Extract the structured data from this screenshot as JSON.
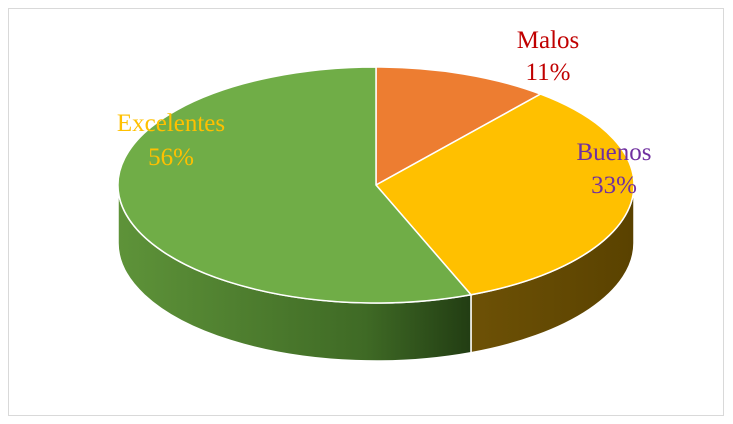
{
  "chart_data": {
    "type": "pie",
    "style": "3d-pie",
    "slices": [
      {
        "name": "Malos",
        "value": 11,
        "value_label": "11%",
        "color": "#ed7d31",
        "label_color": "#c00000"
      },
      {
        "name": "Buenos",
        "value": 33,
        "value_label": "33%",
        "color": "#ffc000",
        "label_color": "#7030a0"
      },
      {
        "name": "Excelentes",
        "value": 56,
        "value_label": "56%",
        "color": "#70ad47",
        "label_color": "#ffc000"
      }
    ],
    "legend": "none",
    "data_labels": "category and percentage"
  }
}
